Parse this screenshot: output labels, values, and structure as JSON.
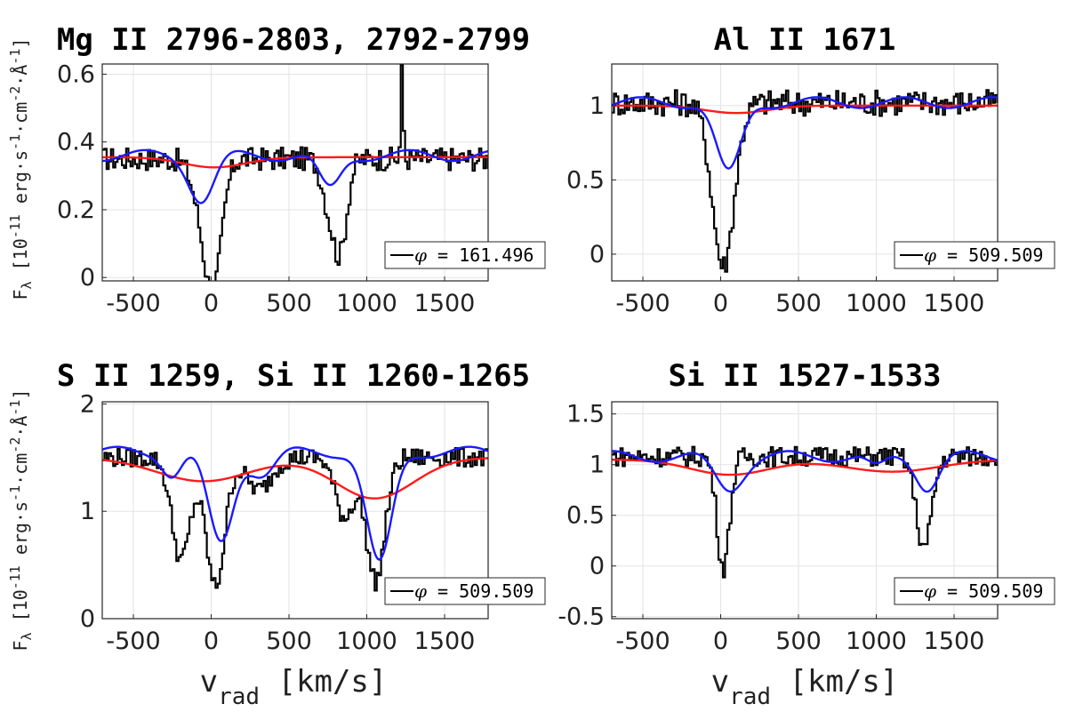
{
  "figure": {
    "ylabel_main": "F",
    "ylabel_sub": "λ",
    "ylabel_unit": "[10",
    "ylabel_exp": "-11",
    "ylabel_rest": " erg·s",
    "ylabel_e1": "-1",
    "ylabel_mid": "·cm",
    "ylabel_e2": "-2",
    "ylabel_mid2": "·Å",
    "ylabel_e3": "-1",
    "ylabel_end": "]",
    "xlabel_main": "v",
    "xlabel_sub": "rad",
    "xlabel_unit": " [km/s]",
    "colors": {
      "observed": "#000000",
      "model_blue": "#1a1aff",
      "model_red": "#ff1a1a"
    }
  },
  "chart_data": [
    {
      "type": "line",
      "title": "Mg II 2796-2803, 2792-2799",
      "xlim": [
        -700,
        1780
      ],
      "ylim": [
        -0.01,
        0.63
      ],
      "xticks": [
        -500,
        0,
        500,
        1000,
        1500
      ],
      "yticks": [
        0,
        0.2,
        0.4,
        0.6
      ],
      "ytick_labels": [
        "0",
        "0.2",
        "0.4",
        "0.6"
      ],
      "legend": "φ = 161.496",
      "legend_symbol": "φ",
      "legend_value": " = 161.496",
      "continuum": 0.35,
      "noise": 0.035,
      "absorptions": [
        {
          "center": 10,
          "width": 55,
          "depth": 0.34
        },
        {
          "center": -70,
          "width": 60,
          "depth": 0.12
        },
        {
          "center": 820,
          "width": 45,
          "depth": 0.27
        },
        {
          "center": 740,
          "width": 40,
          "depth": 0.1
        }
      ],
      "emissions": [
        {
          "center": 1220,
          "width": 8,
          "height": 0.26
        }
      ],
      "blue": {
        "base": 0.36,
        "dips": [
          {
            "center": -60,
            "width": 80,
            "depth": 0.13
          },
          {
            "center": 760,
            "width": 70,
            "depth": 0.1
          }
        ]
      },
      "red": {
        "base": 0.355,
        "dips": [
          {
            "center": 20,
            "width": 200,
            "depth": 0.03
          }
        ]
      }
    },
    {
      "type": "line",
      "title": "Al II 1671",
      "xlim": [
        -700,
        1780
      ],
      "ylim": [
        -0.18,
        1.28
      ],
      "xticks": [
        -500,
        0,
        500,
        1000,
        1500
      ],
      "yticks": [
        0,
        0.5,
        1
      ],
      "ytick_labels": [
        "0",
        "0.5",
        "1"
      ],
      "legend": "φ = 509.509",
      "legend_symbol": "φ",
      "legend_value": " = 509.509",
      "continuum": 1.02,
      "noise": 0.09,
      "absorptions": [
        {
          "center": 10,
          "width": 70,
          "depth": 1.1
        }
      ],
      "emissions": [],
      "blue": {
        "base": 1.02,
        "dips": [
          {
            "center": 50,
            "width": 80,
            "depth": 0.48
          }
        ]
      },
      "red": {
        "base": 1.0,
        "dips": [
          {
            "center": 100,
            "width": 200,
            "depth": 0.05
          }
        ]
      }
    },
    {
      "type": "line",
      "title": "S II 1259, Si II 1260-1265",
      "xlim": [
        -700,
        1780
      ],
      "ylim": [
        0,
        2.02
      ],
      "xticks": [
        -500,
        0,
        500,
        1000,
        1500
      ],
      "yticks": [
        0,
        1,
        2
      ],
      "ytick_labels": [
        "0",
        "1",
        "2"
      ],
      "legend": "φ = 509.509",
      "legend_symbol": "φ",
      "legend_value": " = 509.509",
      "continuum": 1.5,
      "noise": 0.09,
      "absorptions": [
        {
          "center": 20,
          "width": 60,
          "depth": 1.2
        },
        {
          "center": -200,
          "width": 60,
          "depth": 0.95
        },
        {
          "center": 1050,
          "width": 60,
          "depth": 1.15
        },
        {
          "center": 850,
          "width": 60,
          "depth": 0.55
        },
        {
          "center": 300,
          "width": 80,
          "depth": 0.3
        }
      ],
      "emissions": [],
      "blue": {
        "base": 1.55,
        "dips": [
          {
            "center": 60,
            "width": 80,
            "depth": 0.85
          },
          {
            "center": 1080,
            "width": 80,
            "depth": 1.05
          },
          {
            "center": -250,
            "width": 60,
            "depth": 0.2
          },
          {
            "center": 330,
            "width": 80,
            "depth": 0.2
          }
        ]
      },
      "red": {
        "base": 1.5,
        "dips": [
          {
            "center": -50,
            "width": 300,
            "depth": 0.22
          },
          {
            "center": 1050,
            "width": 250,
            "depth": 0.38
          }
        ]
      }
    },
    {
      "type": "line",
      "title": "Si II 1527-1533",
      "xlim": [
        -700,
        1780
      ],
      "ylim": [
        -0.52,
        1.62
      ],
      "xticks": [
        -500,
        0,
        500,
        1000,
        1500
      ],
      "yticks": [
        -0.5,
        0,
        0.5,
        1,
        1.5
      ],
      "ytick_labels": [
        "-0.5",
        "0",
        "0.5",
        "1",
        "1.5"
      ],
      "legend": "φ = 509.509",
      "legend_symbol": "φ",
      "legend_value": " = 509.509",
      "continuum": 1.08,
      "noise": 0.1,
      "absorptions": [
        {
          "center": 10,
          "width": 40,
          "depth": 1.1
        },
        {
          "center": 1300,
          "width": 50,
          "depth": 0.9
        }
      ],
      "emissions": [],
      "blue": {
        "base": 1.08,
        "dips": [
          {
            "center": 50,
            "width": 90,
            "depth": 0.32
          },
          {
            "center": 1330,
            "width": 70,
            "depth": 0.3
          },
          {
            "center": 1000,
            "width": 60,
            "depth": 0.12
          }
        ]
      },
      "red": {
        "base": 1.05,
        "dips": [
          {
            "center": 60,
            "width": 250,
            "depth": 0.15
          },
          {
            "center": 1100,
            "width": 300,
            "depth": 0.12
          }
        ]
      }
    }
  ]
}
